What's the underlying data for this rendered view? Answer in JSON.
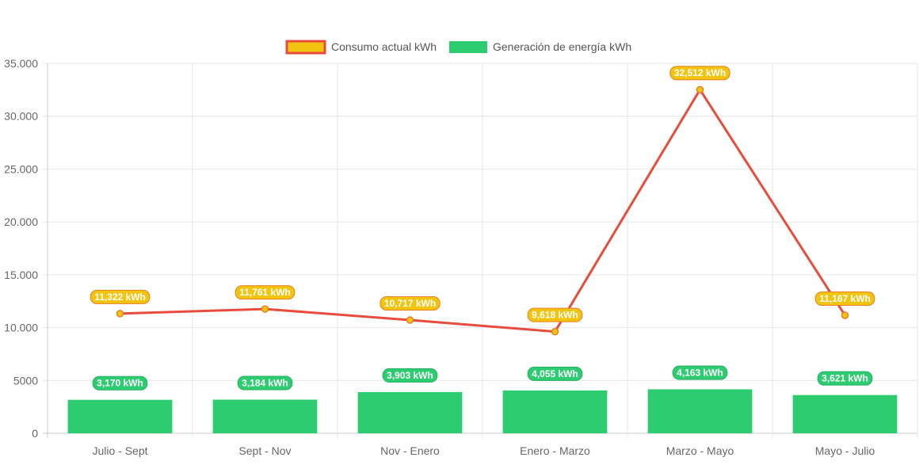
{
  "chart_data": {
    "type": "bar",
    "categories": [
      "Julio - Sept",
      "Sept - Nov",
      "Nov - Enero",
      "Enero - Marzo",
      "Marzo - Mayo",
      "Mayo - Julio"
    ],
    "series": [
      {
        "name": "Consumo actual kWh",
        "render_type": "line",
        "values": [
          11322,
          11761,
          10717,
          9618,
          32512,
          11167
        ],
        "data_labels": [
          "11,322 kWh",
          "11,761 kWh",
          "10,717 kWh",
          "9,618 kWh",
          "32,512 kWh",
          "11,167 kWh"
        ],
        "line_color": "#e74c3c",
        "fill_color": "#f1c40f",
        "label_border_color": "#e67e22"
      },
      {
        "name": "Generación de energía kWh",
        "render_type": "bar",
        "values": [
          3170,
          3184,
          3903,
          4055,
          4163,
          3621
        ],
        "data_labels": [
          "3,170 kWh",
          "3,184 kWh",
          "3,903 kWh",
          "4,055 kWh",
          "4,163 kWh",
          "3,621 kWh"
        ],
        "fill_color": "#2ecc71",
        "label_border_color": "#27ae60"
      }
    ],
    "ylim": [
      0,
      35000
    ],
    "y_ticks": [
      0,
      5000,
      10000,
      15000,
      20000,
      25000,
      30000,
      35000
    ],
    "y_tick_labels": [
      "0",
      "5000",
      "10.000",
      "15.000",
      "20.000",
      "25.000",
      "30.000",
      "35.000"
    ],
    "grid": true,
    "legend_position": "top-center",
    "xlabel": "",
    "ylabel": "",
    "title": ""
  }
}
